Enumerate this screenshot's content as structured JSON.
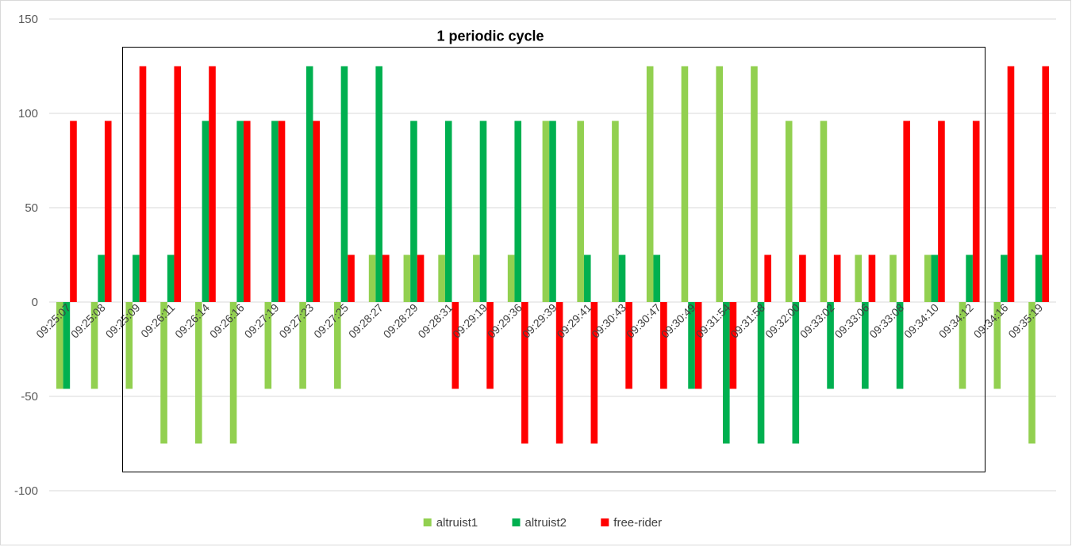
{
  "chart_data": {
    "type": "bar",
    "title": "",
    "xlabel": "",
    "ylabel": "",
    "ylim": [
      -100,
      150
    ],
    "yticks": [
      -100,
      -50,
      0,
      50,
      100,
      150
    ],
    "grid": true,
    "legend_position": "bottom",
    "categories": [
      "09:25:07",
      "09:25:08",
      "09:25:09",
      "09:26:11",
      "09:26:14",
      "09:26:16",
      "09:27:19",
      "09:27:23",
      "09:27:25",
      "09:28:27",
      "09:28:29",
      "09:28:31",
      "09:29:19",
      "09:29:36",
      "09:29:39",
      "09:29:41",
      "09:30:43",
      "09:30:47",
      "09:30:49",
      "09:31:54",
      "09:31:58",
      "09:32:00",
      "09:33:02",
      "09:33:06",
      "09:33:08",
      "09:34:10",
      "09:34:12",
      "09:34:16",
      "09:35:19"
    ],
    "series": [
      {
        "name": "altruist1",
        "color": "#92d050",
        "values": [
          -46,
          -46,
          -46,
          -75,
          -75,
          -75,
          -46,
          -46,
          -46,
          25,
          25,
          25,
          25,
          25,
          96,
          96,
          96,
          125,
          125,
          125,
          125,
          96,
          96,
          25,
          25,
          25,
          -46,
          -46,
          -75
        ]
      },
      {
        "name": "altruist2",
        "color": "#00b050",
        "values": [
          -46,
          25,
          25,
          25,
          96,
          96,
          96,
          125,
          125,
          125,
          96,
          96,
          96,
          96,
          96,
          25,
          25,
          25,
          -46,
          -75,
          -75,
          -75,
          -46,
          -46,
          -46,
          25,
          25,
          25,
          25
        ]
      },
      {
        "name": "free-rider",
        "color": "#ff0000",
        "values": [
          96,
          96,
          125,
          125,
          125,
          96,
          96,
          96,
          25,
          25,
          25,
          -46,
          -46,
          -75,
          -75,
          -75,
          -46,
          -46,
          -46,
          -46,
          25,
          25,
          25,
          25,
          96,
          96,
          96,
          125,
          125
        ]
      }
    ],
    "annotations": [
      {
        "text": "1 periodic cycle",
        "type": "box",
        "from_category": "09:25:09",
        "to_category": "09:34:12",
        "y_top": 125,
        "y_bottom": -90
      }
    ]
  }
}
